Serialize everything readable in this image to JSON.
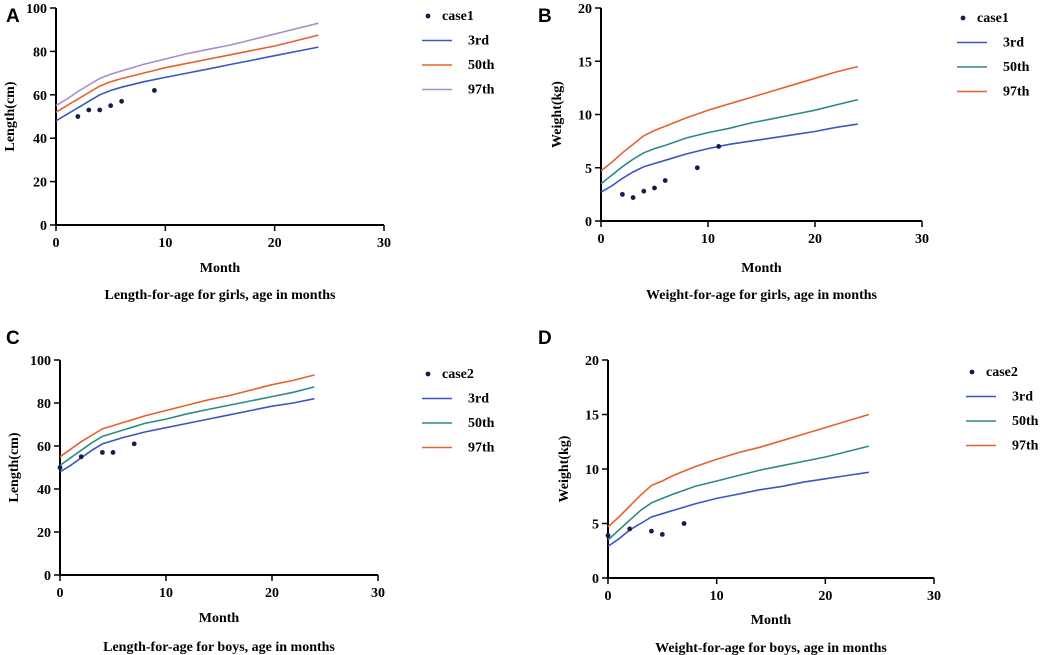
{
  "chart_data": [
    {
      "panel": "A",
      "type": "line",
      "ylabel": "Length(cm)",
      "xlabel": "Month",
      "caption": "Length-for-age for girls,  age in months",
      "xlim": [
        0,
        30
      ],
      "ylim": [
        0,
        100
      ],
      "xticks": [
        0,
        10,
        20,
        30
      ],
      "yticks": [
        0,
        20,
        40,
        60,
        80,
        100
      ],
      "legend_position": "top-right",
      "case": {
        "name": "case1",
        "color": "#1a1a4e",
        "points": [
          {
            "x": 2,
            "y": 50
          },
          {
            "x": 3,
            "y": 53
          },
          {
            "x": 4,
            "y": 53
          },
          {
            "x": 5,
            "y": 55
          },
          {
            "x": 6,
            "y": 57
          },
          {
            "x": 9,
            "y": 62
          }
        ]
      },
      "series": [
        {
          "name": "3rd",
          "color": "#3b55c4",
          "x": [
            0,
            1,
            2,
            3,
            4,
            5,
            6,
            8,
            10,
            12,
            14,
            16,
            18,
            20,
            22,
            24
          ],
          "y": [
            48,
            51,
            54,
            57,
            60,
            62,
            63.5,
            66,
            68,
            70,
            72,
            74,
            76,
            78,
            80,
            82
          ]
        },
        {
          "name": "50th",
          "color": "#e8602c",
          "x": [
            0,
            1,
            2,
            3,
            4,
            5,
            6,
            8,
            10,
            12,
            14,
            16,
            18,
            20,
            22,
            24
          ],
          "y": [
            52,
            55,
            58,
            61,
            64,
            66,
            67.5,
            70,
            72.5,
            74.5,
            76.5,
            78.5,
            80.5,
            82.5,
            85,
            87.5
          ]
        },
        {
          "name": "97th",
          "color": "#a98bd0",
          "x": [
            0,
            1,
            2,
            3,
            4,
            5,
            6,
            8,
            10,
            12,
            14,
            16,
            18,
            20,
            22,
            24
          ],
          "y": [
            55,
            58,
            61.5,
            64.5,
            67.5,
            69.5,
            71,
            74,
            76.5,
            79,
            81,
            83,
            85.5,
            88,
            90.5,
            93
          ]
        }
      ]
    },
    {
      "panel": "B",
      "type": "line",
      "ylabel": "Weight(kg)",
      "xlabel": "Month",
      "caption": "Weight-for-age for girls, age in months",
      "xlim": [
        0,
        30
      ],
      "ylim": [
        0,
        20
      ],
      "xticks": [
        0,
        10,
        20,
        30
      ],
      "yticks": [
        0,
        5,
        10,
        15,
        20
      ],
      "legend_position": "top-right",
      "case": {
        "name": "case1",
        "color": "#1a1a4e",
        "points": [
          {
            "x": 2,
            "y": 2.5
          },
          {
            "x": 3,
            "y": 2.2
          },
          {
            "x": 4,
            "y": 2.8
          },
          {
            "x": 5,
            "y": 3.1
          },
          {
            "x": 6,
            "y": 3.8
          },
          {
            "x": 9,
            "y": 5
          },
          {
            "x": 11,
            "y": 7
          }
        ]
      },
      "series": [
        {
          "name": "3rd",
          "color": "#3b55c4",
          "x": [
            0,
            1,
            2,
            3,
            4,
            5,
            6,
            8,
            10,
            12,
            14,
            16,
            18,
            20,
            22,
            24
          ],
          "y": [
            2.7,
            3.3,
            4,
            4.6,
            5.1,
            5.4,
            5.7,
            6.3,
            6.8,
            7.2,
            7.5,
            7.8,
            8.1,
            8.4,
            8.8,
            9.1
          ]
        },
        {
          "name": "50th",
          "color": "#2e8a86",
          "x": [
            0,
            1,
            2,
            3,
            4,
            5,
            6,
            8,
            10,
            12,
            14,
            16,
            18,
            20,
            22,
            24
          ],
          "y": [
            3.5,
            4.3,
            5.1,
            5.8,
            6.4,
            6.8,
            7.1,
            7.8,
            8.3,
            8.7,
            9.2,
            9.6,
            10,
            10.4,
            10.9,
            11.4
          ]
        },
        {
          "name": "97th",
          "color": "#e8602c",
          "x": [
            0,
            1,
            2,
            3,
            4,
            5,
            6,
            8,
            10,
            12,
            14,
            16,
            18,
            20,
            22,
            24
          ],
          "y": [
            4.7,
            5.5,
            6.4,
            7.2,
            8,
            8.5,
            8.9,
            9.7,
            10.4,
            11,
            11.6,
            12.2,
            12.8,
            13.4,
            14,
            14.5
          ]
        }
      ]
    },
    {
      "panel": "C",
      "type": "line",
      "ylabel": "Length(cm)",
      "xlabel": "Month",
      "caption": "Length-for-age for boys,  age in months",
      "xlim": [
        0,
        30
      ],
      "ylim": [
        0,
        100
      ],
      "xticks": [
        0,
        10,
        20,
        30
      ],
      "yticks": [
        0,
        20,
        40,
        60,
        80,
        100
      ],
      "legend_position": "top-right",
      "case": {
        "name": "case2",
        "color": "#1a1a4e",
        "points": [
          {
            "x": 0,
            "y": 50
          },
          {
            "x": 2,
            "y": 55
          },
          {
            "x": 4,
            "y": 57
          },
          {
            "x": 5,
            "y": 57
          },
          {
            "x": 7,
            "y": 61
          }
        ]
      },
      "series": [
        {
          "name": "3rd",
          "color": "#3b55c4",
          "x": [
            0,
            1,
            2,
            3,
            4,
            5,
            6,
            8,
            10,
            12,
            14,
            16,
            18,
            20,
            22,
            24
          ],
          "y": [
            48,
            51,
            54.5,
            58,
            61,
            62.5,
            64,
            66.5,
            68.5,
            70.5,
            72.5,
            74.5,
            76.5,
            78.5,
            80,
            82
          ]
        },
        {
          "name": "50th",
          "color": "#2e8a86",
          "x": [
            0,
            1,
            2,
            3,
            4,
            5,
            6,
            8,
            10,
            12,
            14,
            16,
            18,
            20,
            22,
            24
          ],
          "y": [
            51,
            54.5,
            58,
            61.5,
            64.5,
            66,
            67.5,
            70.5,
            72.5,
            75,
            77,
            79,
            81,
            83,
            85,
            87.5
          ]
        },
        {
          "name": "97th",
          "color": "#e8602c",
          "x": [
            0,
            1,
            2,
            3,
            4,
            5,
            6,
            8,
            10,
            12,
            14,
            16,
            18,
            20,
            22,
            24
          ],
          "y": [
            55,
            58.5,
            62,
            65,
            68,
            69.5,
            71,
            74,
            76.5,
            79,
            81.5,
            83.5,
            86,
            88.5,
            90.5,
            93
          ]
        }
      ]
    },
    {
      "panel": "D",
      "type": "line",
      "ylabel": "Weight(kg)",
      "xlabel": "Month",
      "caption": "Weight-for-age for boys, age in months",
      "xlim": [
        0,
        30
      ],
      "ylim": [
        0,
        20
      ],
      "xticks": [
        0,
        10,
        20,
        30
      ],
      "yticks": [
        0,
        5,
        10,
        15,
        20
      ],
      "legend_position": "top-right",
      "case": {
        "name": "case2",
        "color": "#1a1a4e",
        "points": [
          {
            "x": 0,
            "y": 3.9
          },
          {
            "x": 2,
            "y": 4.5
          },
          {
            "x": 4,
            "y": 4.3
          },
          {
            "x": 5,
            "y": 4
          },
          {
            "x": 7,
            "y": 5
          }
        ]
      },
      "series": [
        {
          "name": "3rd",
          "color": "#3b55c4",
          "x": [
            0,
            1,
            2,
            3,
            4,
            5,
            6,
            8,
            10,
            12,
            14,
            16,
            18,
            20,
            22,
            24
          ],
          "y": [
            2.9,
            3.6,
            4.4,
            5,
            5.6,
            5.9,
            6.2,
            6.8,
            7.3,
            7.7,
            8.1,
            8.4,
            8.8,
            9.1,
            9.4,
            9.7
          ]
        },
        {
          "name": "50th",
          "color": "#2e8a86",
          "x": [
            0,
            1,
            2,
            3,
            4,
            5,
            6,
            8,
            10,
            12,
            14,
            16,
            18,
            20,
            22,
            24
          ],
          "y": [
            3.5,
            4.4,
            5.3,
            6.2,
            6.9,
            7.3,
            7.7,
            8.4,
            8.9,
            9.4,
            9.9,
            10.3,
            10.7,
            11.1,
            11.6,
            12.1
          ]
        },
        {
          "name": "97th",
          "color": "#e8602c",
          "x": [
            0,
            1,
            2,
            3,
            4,
            5,
            6,
            8,
            10,
            12,
            14,
            16,
            18,
            20,
            22,
            24
          ],
          "y": [
            4.7,
            5.6,
            6.6,
            7.6,
            8.5,
            8.9,
            9.4,
            10.2,
            10.9,
            11.5,
            12,
            12.6,
            13.2,
            13.8,
            14.4,
            15
          ]
        }
      ]
    }
  ]
}
